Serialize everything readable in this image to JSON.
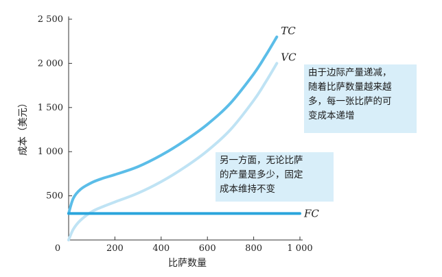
{
  "chart_data": {
    "type": "line",
    "xlabel": "比萨数量",
    "ylabel": "成本（美元）",
    "xlim": [
      0,
      1000
    ],
    "ylim": [
      0,
      2500
    ],
    "xticks": [
      {
        "value": 200,
        "label": "200"
      },
      {
        "value": 400,
        "label": "400"
      },
      {
        "value": 600,
        "label": "600"
      },
      {
        "value": 800,
        "label": "800"
      },
      {
        "value": 1000,
        "label": "1 000"
      }
    ],
    "yticks": [
      {
        "value": 500,
        "label": "500"
      },
      {
        "value": 1000,
        "label": "1 000"
      },
      {
        "value": 1500,
        "label": "1 500"
      },
      {
        "value": 2000,
        "label": "2 000"
      },
      {
        "value": 2500,
        "label": "2 500"
      }
    ],
    "origin_label": "0",
    "grid": false,
    "series": [
      {
        "name": "TC",
        "color": "#5bbde8",
        "x": [
          0,
          20,
          50,
          100,
          150,
          200,
          300,
          400,
          500,
          600,
          700,
          800,
          850,
          900
        ],
        "y": [
          300,
          470,
          570,
          650,
          700,
          740,
          830,
          960,
          1120,
          1310,
          1550,
          1880,
          2080,
          2300
        ]
      },
      {
        "name": "VC",
        "color": "#bfe3f4",
        "x": [
          0,
          20,
          50,
          100,
          150,
          200,
          300,
          400,
          500,
          600,
          700,
          800,
          850,
          900
        ],
        "y": [
          0,
          120,
          220,
          320,
          380,
          430,
          530,
          660,
          820,
          1010,
          1250,
          1580,
          1780,
          2000
        ]
      },
      {
        "name": "FC",
        "color": "#2aa5dc",
        "x": [
          0,
          1000
        ],
        "y": [
          300,
          300
        ]
      }
    ],
    "annotations": [
      {
        "id": "vc-note",
        "lines": [
          "由于边际产量递减，",
          "随着比萨数量越来越",
          "多，每一张比萨的可",
          "变成本递增"
        ]
      },
      {
        "id": "fc-note",
        "lines": [
          "另一方面，无论比萨",
          "的产量是多少，固定",
          "成本维持不变"
        ]
      }
    ]
  }
}
